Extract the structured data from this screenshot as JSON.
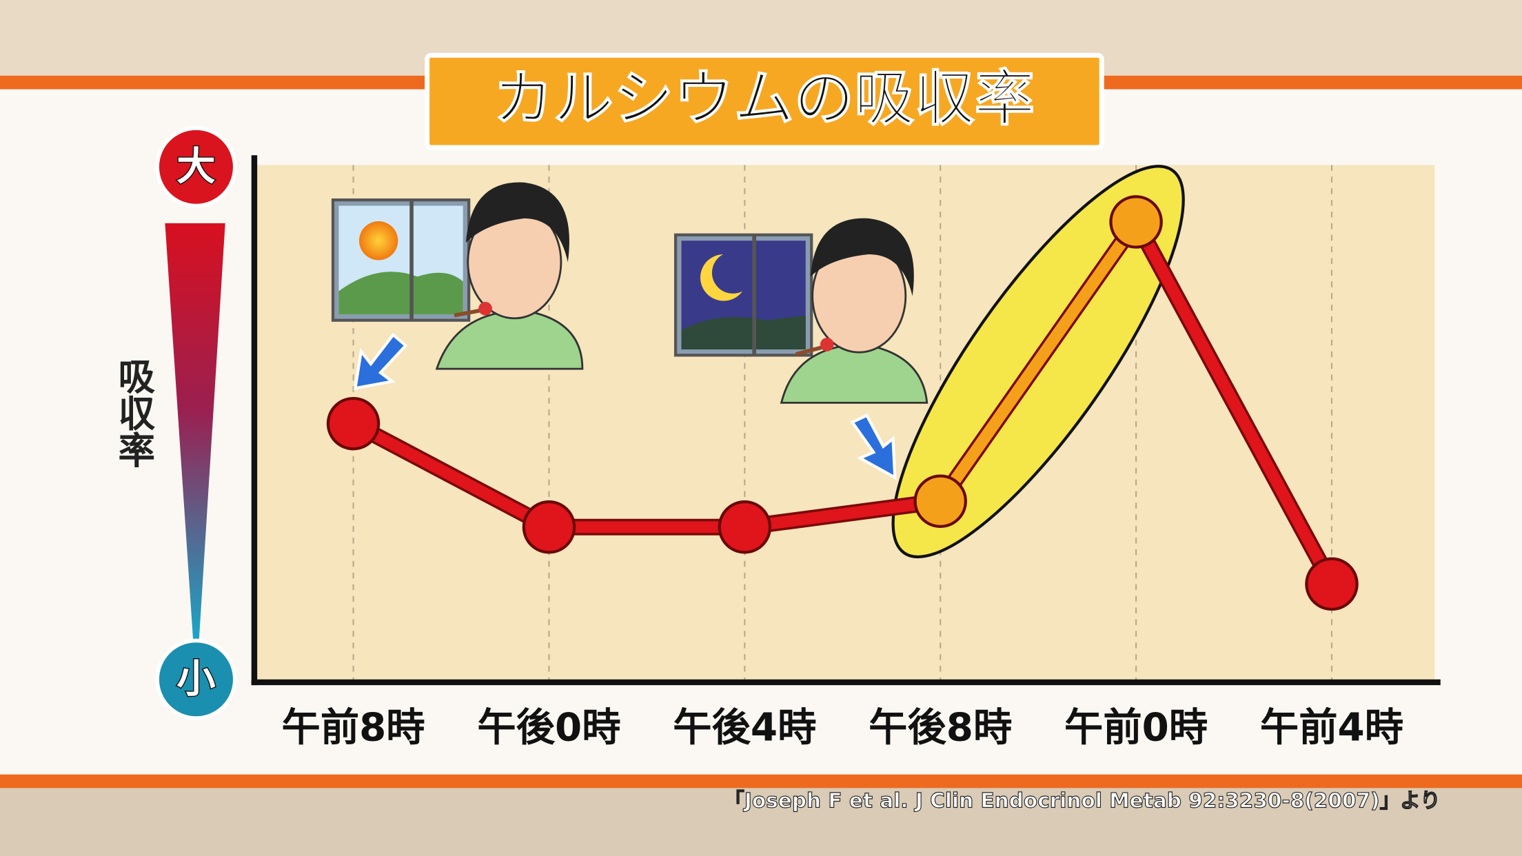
{
  "chart_data": {
    "type": "line",
    "title": "カルシウムの吸収率",
    "y_label": "吸収率",
    "categories": [
      "午前8時",
      "午後0時",
      "午後4時",
      "午後8時",
      "午前0時",
      "午前4時"
    ],
    "series": [
      {
        "values": [
          50,
          30,
          30,
          35,
          89,
          19
        ],
        "color": "#e0141b",
        "point_colors": [
          "#e0141b",
          "#e0141b",
          "#e0141b",
          "#f5a01a",
          "#f5a01a",
          "#e0141b"
        ]
      }
    ],
    "ylim": [
      0,
      100
    ],
    "yticks": [
      {
        "value": 100,
        "label": "大"
      },
      {
        "value": 0,
        "label": "小"
      }
    ],
    "grid": true,
    "source": "「Joseph F et al. J Clin Endocrinol Metab 92:3230-8(2007)」より"
  }
}
